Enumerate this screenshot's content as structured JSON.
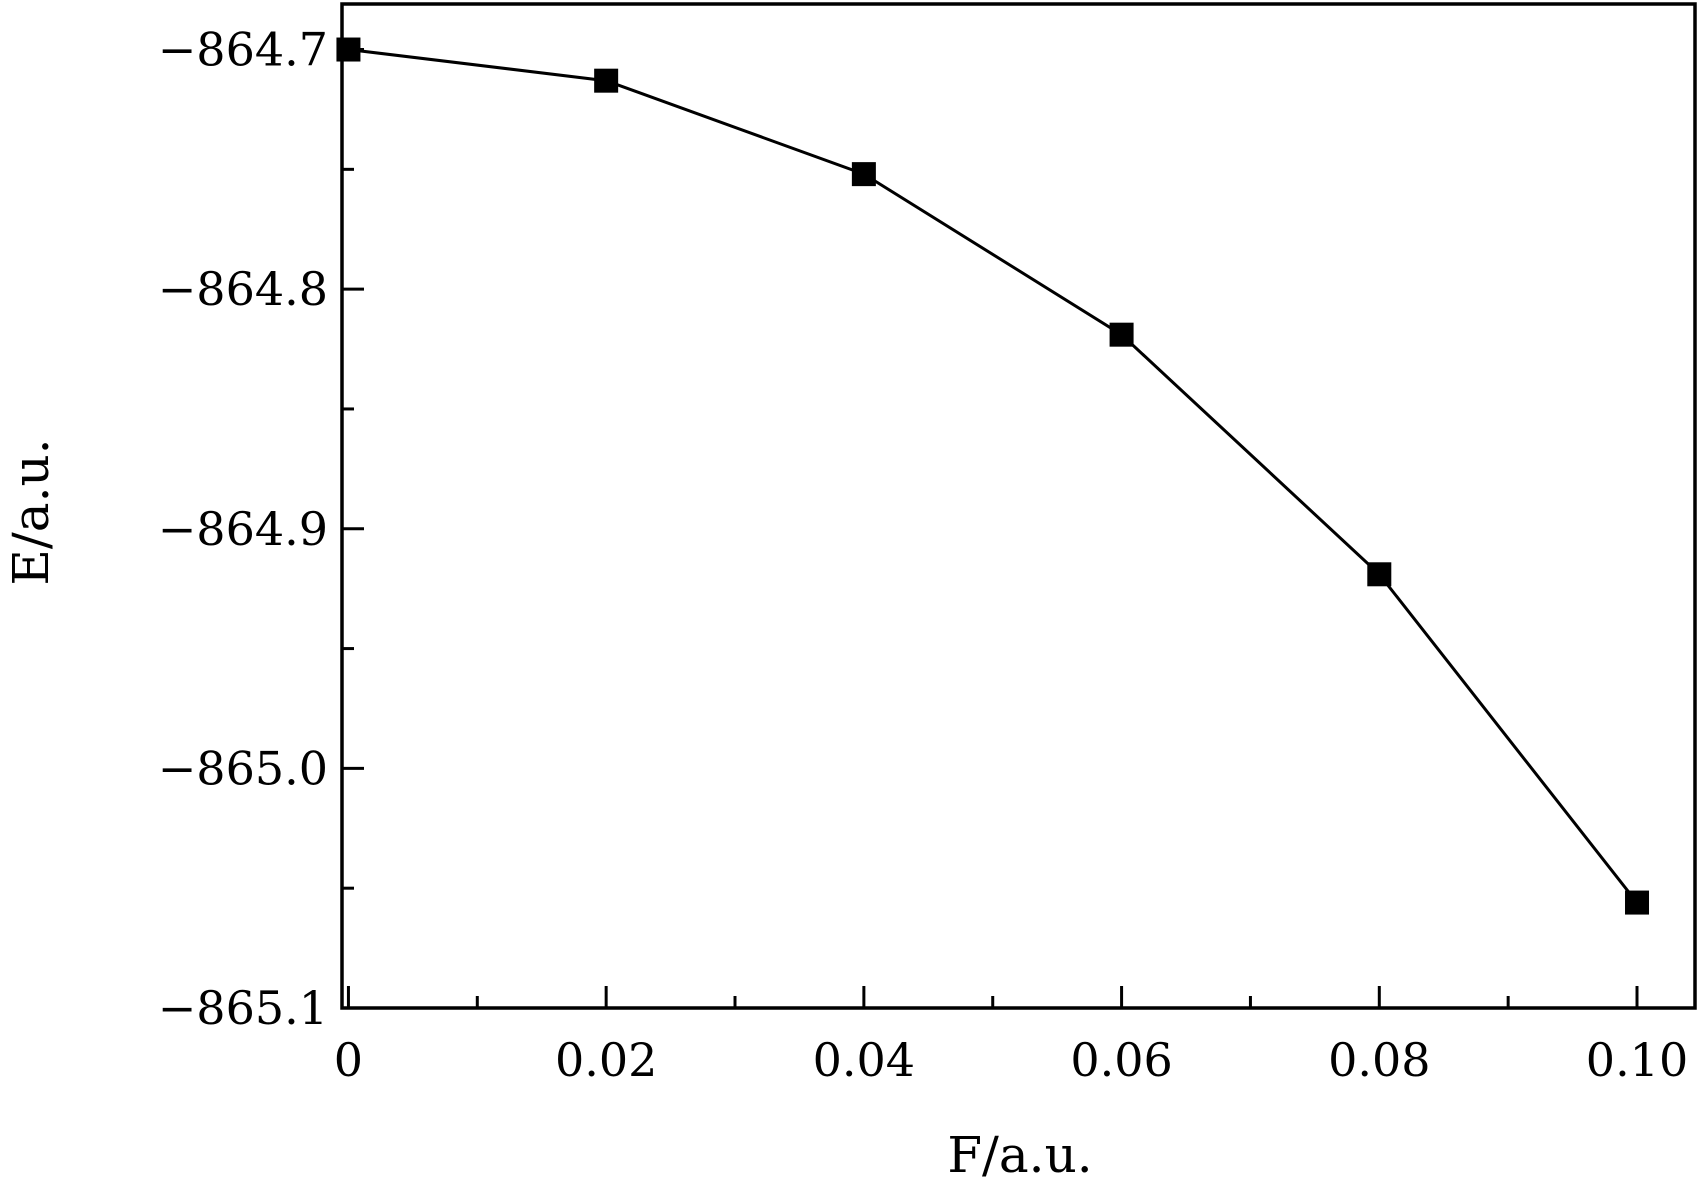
{
  "chart_data": {
    "type": "line",
    "title": "",
    "xlabel": "F/a.u.",
    "ylabel": "E/a.u.",
    "xlim": [
      -0.0005,
      0.1045
    ],
    "ylim": [
      -865.1,
      -864.681
    ],
    "x_ticks": [
      0,
      0.02,
      0.04,
      0.06,
      0.08,
      0.1
    ],
    "x_tick_labels": [
      "0",
      "0.02",
      "0.04",
      "0.06",
      "0.08",
      "0.10"
    ],
    "x_minor_ticks": [
      0.01,
      0.03,
      0.05,
      0.07,
      0.09
    ],
    "y_ticks": [
      -864.7,
      -864.8,
      -864.9,
      -865.0,
      -865.1
    ],
    "y_tick_labels": [
      "−864.7",
      "−864.8",
      "−864.9",
      "−865.0",
      "−865.1"
    ],
    "y_minor_ticks": [
      -864.75,
      -864.85,
      -864.95,
      -865.05
    ],
    "grid": false,
    "legend": "none",
    "series": [
      {
        "color": "#000000",
        "marker": "square",
        "x": [
          0,
          0.02,
          0.04,
          0.06,
          0.08,
          0.1
        ],
        "y": [
          -864.7,
          -864.713,
          -864.752,
          -864.819,
          -864.919,
          -865.056
        ]
      }
    ]
  }
}
